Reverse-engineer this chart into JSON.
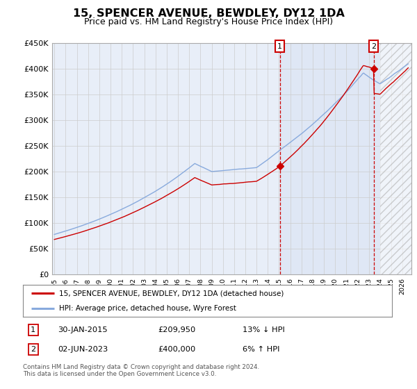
{
  "title": "15, SPENCER AVENUE, BEWDLEY, DY12 1DA",
  "subtitle": "Price paid vs. HM Land Registry's House Price Index (HPI)",
  "title_fontsize": 11.5,
  "subtitle_fontsize": 9,
  "ylabel_ticks": [
    "£0",
    "£50K",
    "£100K",
    "£150K",
    "£200K",
    "£250K",
    "£300K",
    "£350K",
    "£400K",
    "£450K"
  ],
  "ytick_values": [
    0,
    50000,
    100000,
    150000,
    200000,
    250000,
    300000,
    350000,
    400000,
    450000
  ],
  "ylim": [
    0,
    450000
  ],
  "xlim_start": 1994.8,
  "xlim_end": 2026.8,
  "xtick_years": [
    1995,
    1996,
    1997,
    1998,
    1999,
    2000,
    2001,
    2002,
    2003,
    2004,
    2005,
    2006,
    2007,
    2008,
    2009,
    2010,
    2011,
    2012,
    2013,
    2014,
    2015,
    2016,
    2017,
    2018,
    2019,
    2020,
    2021,
    2022,
    2023,
    2024,
    2025,
    2026
  ],
  "hpi_color": "#88aadd",
  "property_color": "#cc0000",
  "sale1_date": 2015.08,
  "sale1_price": 209950,
  "sale2_date": 2023.42,
  "sale2_price": 400000,
  "legend_line1": "15, SPENCER AVENUE, BEWDLEY, DY12 1DA (detached house)",
  "legend_line2": "HPI: Average price, detached house, Wyre Forest",
  "table_row1_num": "1",
  "table_row1_date": "30-JAN-2015",
  "table_row1_price": "£209,950",
  "table_row1_hpi": "13% ↓ HPI",
  "table_row2_num": "2",
  "table_row2_date": "02-JUN-2023",
  "table_row2_price": "£400,000",
  "table_row2_hpi": "6% ↑ HPI",
  "footer_line1": "Contains HM Land Registry data © Crown copyright and database right 2024.",
  "footer_line2": "This data is licensed under the Open Government Licence v3.0.",
  "bg_color": "#ffffff",
  "plot_bg_color": "#e8eef8",
  "grid_color": "#cccccc",
  "hatch_start": 2024.0,
  "vline_color": "#cc0000",
  "vline_style": "--",
  "marker_style": "D"
}
